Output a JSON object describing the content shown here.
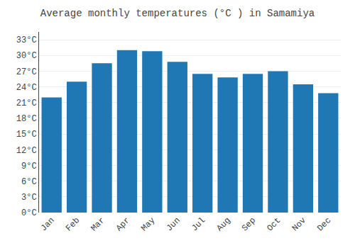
{
  "chart_data": {
    "type": "bar",
    "title": "Average monthly temperatures (°C ) in Samamiya",
    "categories": [
      "Jan",
      "Feb",
      "Mar",
      "Apr",
      "May",
      "Jun",
      "Jul",
      "Aug",
      "Sep",
      "Oct",
      "Nov",
      "Dec"
    ],
    "values": [
      22.0,
      25.0,
      28.5,
      31.0,
      30.8,
      28.8,
      26.5,
      25.8,
      26.5,
      27.0,
      24.5,
      22.8
    ],
    "ylim": [
      0,
      34.5
    ],
    "yticks": [
      {
        "value": 0,
        "label": "0°C"
      },
      {
        "value": 3,
        "label": "3°C"
      },
      {
        "value": 6,
        "label": "6°C"
      },
      {
        "value": 9,
        "label": "9°C"
      },
      {
        "value": 12,
        "label": "12°C"
      },
      {
        "value": 15,
        "label": "15°C"
      },
      {
        "value": 18,
        "label": "18°C"
      },
      {
        "value": 21,
        "label": "21°C"
      },
      {
        "value": 24,
        "label": "24°C"
      },
      {
        "value": 27,
        "label": "27°C"
      },
      {
        "value": 30,
        "label": "30°C"
      },
      {
        "value": 33,
        "label": "33°C"
      }
    ],
    "grid": true
  }
}
